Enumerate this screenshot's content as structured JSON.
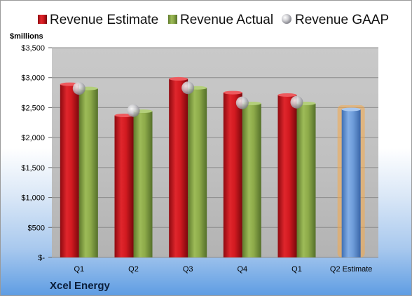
{
  "chart_data": {
    "type": "bar",
    "company": "Xcel Energy",
    "units_label": "$millions",
    "categories": [
      "Q1",
      "Q2",
      "Q3",
      "Q4",
      "Q1",
      "Q2 Estimate"
    ],
    "series": [
      {
        "name": "Revenue Estimate",
        "color": "#c0141c",
        "values": [
          2890,
          2370,
          2980,
          2750,
          2710,
          null
        ]
      },
      {
        "name": "Revenue Actual",
        "color": "#8aa746",
        "values": [
          2820,
          2440,
          2830,
          2570,
          2570,
          null
        ]
      },
      {
        "name": "Revenue GAAP",
        "color": "#c8c8cc",
        "marker": "sphere",
        "values": [
          2820,
          2450,
          2830,
          2580,
          2590,
          null
        ]
      }
    ],
    "projection": {
      "category": "Q2 Estimate",
      "value": 2470,
      "color": "#6b9ad6",
      "glow": "#f5a94a"
    },
    "y_ticks": [
      "$-",
      "$500",
      "$1,000",
      "$1,500",
      "$2,000",
      "$2,500",
      "$3,000",
      "$3,500"
    ],
    "ylim": [
      0,
      3500
    ],
    "grid": true,
    "legend_position": "top"
  }
}
